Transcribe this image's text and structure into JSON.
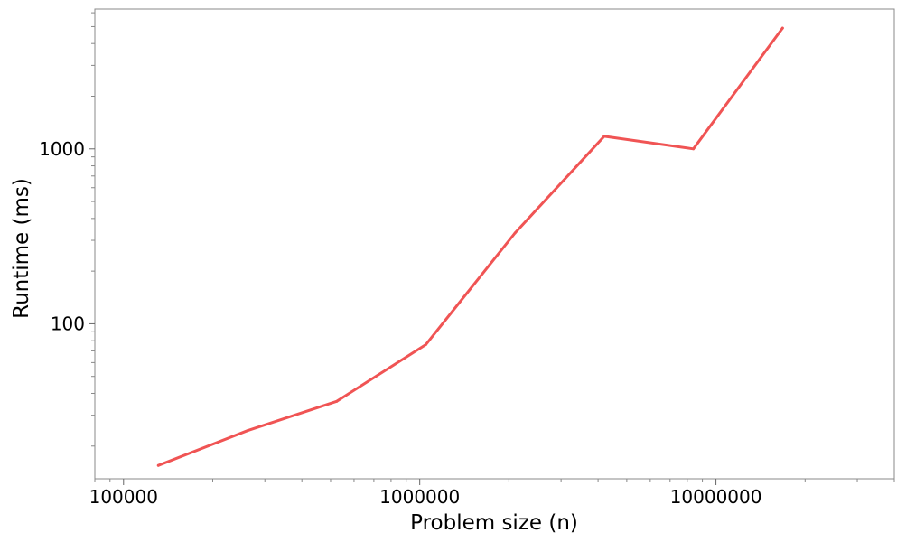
{
  "chart_data": {
    "type": "line",
    "title": "",
    "xlabel": "Problem size (n)",
    "ylabel": "Runtime (ms)",
    "xscale": "log",
    "yscale": "log",
    "xlim": [
      80000,
      40000000
    ],
    "ylim": [
      13,
      6300
    ],
    "x_ticks": [
      {
        "value": 100000,
        "label": "100000"
      },
      {
        "value": 1000000,
        "label": "1000000"
      },
      {
        "value": 10000000,
        "label": "10000000"
      }
    ],
    "y_ticks": [
      {
        "value": 100,
        "label": "100"
      },
      {
        "value": 1000,
        "label": "1000"
      }
    ],
    "grid": false,
    "legend": "none",
    "series": [
      {
        "color": "#f05454",
        "x": [
          131072,
          262144,
          524288,
          1048576,
          2097152,
          4194304,
          8388608,
          16777216
        ],
        "y": [
          15.5,
          24.5,
          36,
          76,
          330,
          1180,
          1000,
          4900
        ]
      }
    ]
  }
}
